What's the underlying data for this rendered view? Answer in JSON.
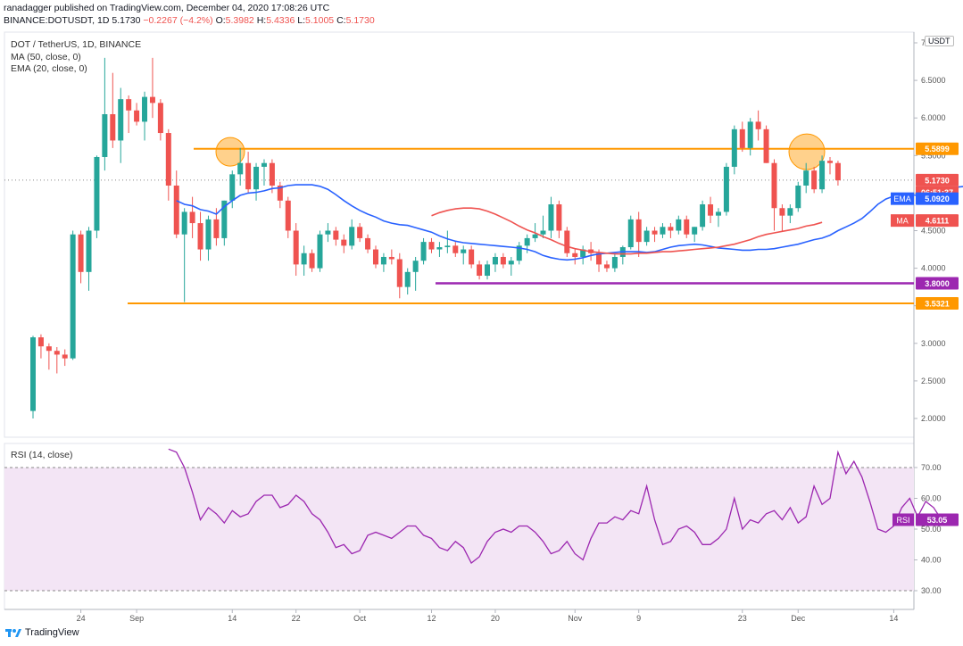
{
  "header": {
    "line1": "ranadagger published on TradingView.com, December 04, 2020 17:08:26 UTC",
    "symbol": "BINANCE:DOTUSDT, 1D",
    "last": "5.1730",
    "change": "−0.2267 (−4.2%)",
    "o_label": "O:",
    "o": "5.3982",
    "h_label": "H:",
    "h": "5.4336",
    "l_label": "L:",
    "l": "5.1005",
    "c_label": "C:",
    "c": "5.1730"
  },
  "legend": {
    "pair": "DOT / TetherUS, 1D, BINANCE",
    "ma": "MA (50, close, 0)",
    "ema": "EMA (20, close, 0)"
  },
  "currency": "USDT",
  "rsi_title": "RSI (14, close)",
  "footer": {
    "brand": "TradingView"
  },
  "colors": {
    "up": "#26a69a",
    "down": "#ef5350",
    "ema": "#2962ff",
    "ma": "#ef5350",
    "resist": "#ff9800",
    "support": "#9c27b0",
    "rsi": "#9c27b0",
    "rsi_band": "#f3e5f5"
  },
  "chart_data": [
    {
      "type": "candlestick",
      "title": "DOT / TetherUS, 1D, BINANCE",
      "ylim": [
        1.9,
        7.1
      ],
      "y_ticks": [
        "2.0000",
        "2.5000",
        "3.0000",
        "3.5000",
        "4.0000",
        "4.5000",
        "5.0000",
        "5.5000",
        "6.0000",
        "6.5000",
        "7.0000"
      ],
      "x_ticks": [
        "24",
        "Sep",
        "14",
        "22",
        "Oct",
        "12",
        "20",
        "Nov",
        "9",
        "23",
        "Dec",
        "14"
      ],
      "ohlc": [
        [
          2.1,
          3.1,
          2.0,
          3.08
        ],
        [
          3.08,
          3.12,
          2.8,
          2.96
        ],
        [
          2.96,
          3.0,
          2.65,
          2.9
        ],
        [
          2.9,
          2.95,
          2.6,
          2.85
        ],
        [
          2.85,
          2.92,
          2.7,
          2.8
        ],
        [
          2.8,
          4.5,
          2.78,
          4.45
        ],
        [
          4.45,
          4.5,
          3.8,
          3.95
        ],
        [
          3.95,
          4.55,
          3.7,
          4.5
        ],
        [
          4.5,
          5.5,
          4.4,
          5.48
        ],
        [
          5.48,
          6.8,
          5.3,
          6.05
        ],
        [
          6.05,
          6.6,
          5.6,
          5.7
        ],
        [
          5.7,
          6.4,
          5.4,
          6.25
        ],
        [
          6.25,
          6.3,
          5.8,
          6.1
        ],
        [
          6.1,
          6.2,
          5.9,
          5.95
        ],
        [
          5.95,
          6.35,
          5.7,
          6.28
        ],
        [
          6.28,
          6.8,
          6.0,
          6.2
        ],
        [
          6.2,
          6.25,
          5.7,
          5.8
        ],
        [
          5.8,
          5.85,
          4.9,
          5.1
        ],
        [
          5.1,
          5.3,
          4.4,
          4.45
        ],
        [
          4.45,
          4.8,
          3.55,
          4.75
        ],
        [
          4.75,
          4.95,
          4.4,
          4.6
        ],
        [
          4.6,
          4.75,
          4.1,
          4.25
        ],
        [
          4.25,
          4.7,
          4.1,
          4.65
        ],
        [
          4.65,
          4.8,
          4.3,
          4.4
        ],
        [
          4.4,
          4.9,
          4.3,
          4.9
        ],
        [
          4.9,
          5.3,
          4.8,
          5.25
        ],
        [
          5.25,
          5.6,
          5.1,
          5.4
        ],
        [
          5.4,
          5.55,
          5.0,
          5.05
        ],
        [
          5.05,
          5.4,
          4.9,
          5.35
        ],
        [
          5.35,
          5.45,
          5.1,
          5.4
        ],
        [
          5.4,
          5.45,
          5.0,
          5.1
        ],
        [
          5.1,
          5.15,
          4.8,
          4.9
        ],
        [
          4.9,
          4.95,
          4.4,
          4.5
        ],
        [
          4.5,
          4.6,
          3.9,
          4.05
        ],
        [
          4.05,
          4.3,
          3.9,
          4.2
        ],
        [
          4.2,
          4.25,
          3.95,
          4.0
        ],
        [
          4.0,
          4.5,
          3.95,
          4.45
        ],
        [
          4.45,
          4.6,
          4.35,
          4.5
        ],
        [
          4.5,
          4.55,
          4.3,
          4.38
        ],
        [
          4.38,
          4.45,
          4.2,
          4.3
        ],
        [
          4.3,
          4.65,
          4.25,
          4.55
        ],
        [
          4.55,
          4.6,
          4.35,
          4.4
        ],
        [
          4.4,
          4.45,
          4.2,
          4.25
        ],
        [
          4.25,
          4.3,
          4.0,
          4.05
        ],
        [
          4.05,
          4.2,
          3.95,
          4.15
        ],
        [
          4.15,
          4.25,
          4.05,
          4.12
        ],
        [
          4.12,
          4.2,
          3.6,
          3.75
        ],
        [
          3.75,
          4.0,
          3.65,
          3.95
        ],
        [
          3.95,
          4.15,
          3.7,
          4.1
        ],
        [
          4.1,
          4.4,
          4.05,
          4.35
        ],
        [
          4.35,
          4.4,
          4.2,
          4.25
        ],
        [
          4.25,
          4.35,
          4.15,
          4.28
        ],
        [
          4.28,
          4.5,
          4.2,
          4.3
        ],
        [
          4.3,
          4.35,
          4.15,
          4.2
        ],
        [
          4.2,
          4.3,
          4.05,
          4.25
        ],
        [
          4.25,
          4.3,
          4.0,
          4.05
        ],
        [
          4.05,
          4.1,
          3.85,
          3.9
        ],
        [
          3.9,
          4.1,
          3.85,
          4.05
        ],
        [
          4.05,
          4.2,
          3.95,
          4.15
        ],
        [
          4.15,
          4.2,
          4.0,
          4.05
        ],
        [
          4.05,
          4.15,
          3.9,
          4.1
        ],
        [
          4.1,
          4.35,
          4.05,
          4.3
        ],
        [
          4.3,
          4.45,
          4.2,
          4.4
        ],
        [
          4.4,
          4.6,
          4.35,
          4.45
        ],
        [
          4.45,
          4.7,
          4.4,
          4.5
        ],
        [
          4.5,
          4.95,
          4.4,
          4.85
        ],
        [
          4.85,
          4.9,
          4.4,
          4.5
        ],
        [
          4.5,
          4.55,
          4.15,
          4.2
        ],
        [
          4.2,
          4.25,
          4.05,
          4.15
        ],
        [
          4.15,
          4.3,
          4.05,
          4.25
        ],
        [
          4.25,
          4.35,
          4.1,
          4.2
        ],
        [
          4.2,
          4.25,
          3.95,
          4.05
        ],
        [
          4.05,
          4.1,
          3.95,
          4.0
        ],
        [
          4.0,
          4.2,
          3.95,
          4.15
        ],
        [
          4.15,
          4.3,
          4.05,
          4.28
        ],
        [
          4.28,
          4.7,
          4.25,
          4.65
        ],
        [
          4.65,
          4.75,
          4.15,
          4.35
        ],
        [
          4.35,
          4.55,
          4.3,
          4.5
        ],
        [
          4.5,
          4.55,
          4.35,
          4.45
        ],
        [
          4.45,
          4.6,
          4.4,
          4.55
        ],
        [
          4.55,
          4.6,
          4.4,
          4.5
        ],
        [
          4.5,
          4.7,
          4.45,
          4.65
        ],
        [
          4.65,
          4.7,
          4.4,
          4.45
        ],
        [
          4.45,
          4.55,
          4.35,
          4.55
        ],
        [
          4.55,
          4.9,
          4.5,
          4.85
        ],
        [
          4.85,
          4.95,
          4.6,
          4.7
        ],
        [
          4.7,
          4.8,
          4.55,
          4.75
        ],
        [
          4.75,
          5.4,
          4.7,
          5.35
        ],
        [
          5.35,
          5.9,
          5.25,
          5.85
        ],
        [
          5.85,
          5.95,
          5.55,
          5.6
        ],
        [
          5.6,
          6.0,
          5.5,
          5.95
        ],
        [
          5.95,
          6.1,
          5.7,
          5.85
        ],
        [
          5.85,
          5.9,
          5.4,
          5.4
        ],
        [
          5.4,
          5.45,
          4.5,
          4.8
        ],
        [
          4.8,
          4.85,
          4.5,
          4.7
        ],
        [
          4.7,
          4.85,
          4.6,
          4.8
        ],
        [
          4.8,
          5.15,
          4.75,
          5.1
        ],
        [
          5.1,
          5.4,
          5.0,
          5.3
        ],
        [
          5.3,
          5.35,
          5.0,
          5.05
        ],
        [
          5.05,
          5.5,
          5.0,
          5.43
        ],
        [
          5.43,
          5.48,
          5.25,
          5.4
        ],
        [
          5.4,
          5.43,
          5.1,
          5.17
        ]
      ],
      "series": [
        {
          "name": "EMA",
          "values": [
            4.9,
            4.85,
            4.83,
            4.78,
            4.76,
            4.72,
            4.82,
            4.9,
            4.97,
            5.0,
            5.01,
            5.03,
            5.06,
            5.07,
            5.1,
            5.11,
            5.11,
            5.11,
            5.09,
            5.05,
            4.98,
            4.9,
            4.83,
            4.77,
            4.72,
            4.68,
            4.63,
            4.6,
            4.58,
            4.57,
            4.54,
            4.51,
            4.48,
            4.43,
            4.39,
            4.36,
            4.34,
            4.33,
            4.32,
            4.31,
            4.3,
            4.29,
            4.28,
            4.27,
            4.25,
            4.22,
            4.17,
            4.14,
            4.12,
            4.11,
            4.12,
            4.14,
            4.17,
            4.19,
            4.2,
            4.21,
            4.22,
            4.22,
            4.22,
            4.21,
            4.22,
            4.25,
            4.28,
            4.3,
            4.31,
            4.32,
            4.31,
            4.29,
            4.27,
            4.26,
            4.25,
            4.24,
            4.24,
            4.25,
            4.25,
            4.26,
            4.28,
            4.3,
            4.32,
            4.35,
            4.38,
            4.4,
            4.44,
            4.5,
            4.55,
            4.6,
            4.66,
            4.75,
            4.85,
            4.92,
            4.96,
            4.97,
            4.98,
            4.97,
            4.98,
            5.0,
            5.03,
            5.06,
            5.08,
            5.09,
            5.09
          ]
        },
        {
          "name": "MA",
          "values": [
            4.7,
            4.74,
            4.77,
            4.79,
            4.8,
            4.8,
            4.79,
            4.76,
            4.72,
            4.67,
            4.62,
            4.56,
            4.51,
            4.47,
            4.42,
            4.38,
            4.33,
            4.29,
            4.26,
            4.24,
            4.22,
            4.21,
            4.2,
            4.19,
            4.19,
            4.19,
            4.2,
            4.2,
            4.21,
            4.22,
            4.22,
            4.23,
            4.24,
            4.25,
            4.26,
            4.27,
            4.28,
            4.3,
            4.32,
            4.35,
            4.38,
            4.42,
            4.45,
            4.47,
            4.49,
            4.51,
            4.53,
            4.56,
            4.58,
            4.61
          ]
        }
      ],
      "ema_start_index": 18,
      "ma_start_index": 50,
      "annotations": {
        "resistance": "5.5899",
        "support_purple": "3.8000",
        "support_orange": "3.5321",
        "price": "5.1730",
        "countdown": "06:51:37",
        "ema_label": "EMA",
        "ema_value": "5.0920",
        "ma_label": "MA",
        "ma_value": "4.6111"
      }
    },
    {
      "type": "line",
      "title": "RSI (14, close)",
      "ylim": [
        28,
        78
      ],
      "y_ticks": [
        "30.00",
        "40.00",
        "50.00",
        "60.00",
        "70.00"
      ],
      "band": [
        30,
        70
      ],
      "series": [
        {
          "name": "RSI",
          "values": [
            76,
            75,
            70,
            62,
            53,
            57,
            55,
            52,
            56,
            54,
            55,
            59,
            61,
            61,
            57,
            58,
            61,
            59,
            55,
            53,
            49,
            44,
            45,
            42,
            43,
            48,
            49,
            48,
            47,
            49,
            51,
            51,
            48,
            47,
            44,
            43,
            46,
            44,
            39,
            41,
            46,
            49,
            50,
            49,
            51,
            51,
            49,
            46,
            42,
            43,
            46,
            42,
            40,
            47,
            52,
            52,
            54,
            53,
            56,
            55,
            64,
            53,
            45,
            46,
            50,
            51,
            49,
            45,
            45,
            47,
            50,
            60,
            50,
            53,
            52,
            55,
            56,
            53,
            57,
            52,
            54,
            64,
            58,
            60,
            75,
            68,
            72,
            67,
            59,
            50,
            49,
            51,
            57,
            60,
            54,
            59,
            57,
            53
          ]
        }
      ],
      "rsi_start_index": 17,
      "annotations": {
        "rsi_label": "RSI",
        "rsi_value": "53.05"
      }
    }
  ]
}
